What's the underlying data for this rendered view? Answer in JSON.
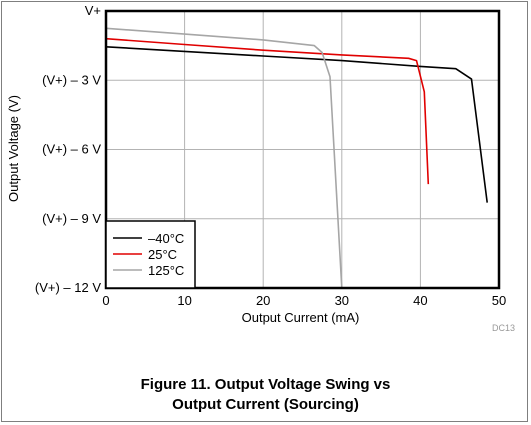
{
  "caption": {
    "line1": "Figure 11. Output Voltage Swing vs",
    "line2": "Output Current (Sourcing)"
  },
  "chart_data": {
    "type": "line",
    "xlabel": "Output Current (mA)",
    "ylabel": "Output Voltage (V)",
    "xlim": [
      0,
      50
    ],
    "ylim": [
      -12,
      0
    ],
    "x_ticks": [
      0,
      10,
      20,
      30,
      40,
      50
    ],
    "x_tick_labels": [
      "0",
      "10",
      "20",
      "30",
      "40",
      "50"
    ],
    "y_ticks": [
      0,
      -3,
      -6,
      -9,
      -12
    ],
    "y_tick_labels": [
      "V+",
      "(V+) – 3 V",
      "(V+) – 6 V",
      "(V+) – 9 V",
      "(V+) – 12 V"
    ],
    "grid": true,
    "legend_position": "bottom-left",
    "watermark": "DC13",
    "series": [
      {
        "name": "–40°C",
        "color": "#000000",
        "points": [
          [
            0,
            -1.55
          ],
          [
            10,
            -1.75
          ],
          [
            20,
            -1.95
          ],
          [
            30,
            -2.15
          ],
          [
            40,
            -2.4
          ],
          [
            44.5,
            -2.5
          ],
          [
            46.5,
            -2.95
          ],
          [
            48.5,
            -8.3
          ]
        ]
      },
      {
        "name": "25°C",
        "color": "#e00000",
        "points": [
          [
            0,
            -1.2
          ],
          [
            10,
            -1.45
          ],
          [
            20,
            -1.7
          ],
          [
            30,
            -1.9
          ],
          [
            38.5,
            -2.05
          ],
          [
            39.5,
            -2.15
          ],
          [
            40.5,
            -3.5
          ],
          [
            41,
            -7.5
          ]
        ]
      },
      {
        "name": "125°C",
        "color": "#a6a6a6",
        "points": [
          [
            0,
            -0.75
          ],
          [
            10,
            -1.0
          ],
          [
            20,
            -1.25
          ],
          [
            26.5,
            -1.5
          ],
          [
            27.5,
            -1.8
          ],
          [
            28.5,
            -2.85
          ],
          [
            30,
            -12
          ]
        ]
      }
    ]
  }
}
